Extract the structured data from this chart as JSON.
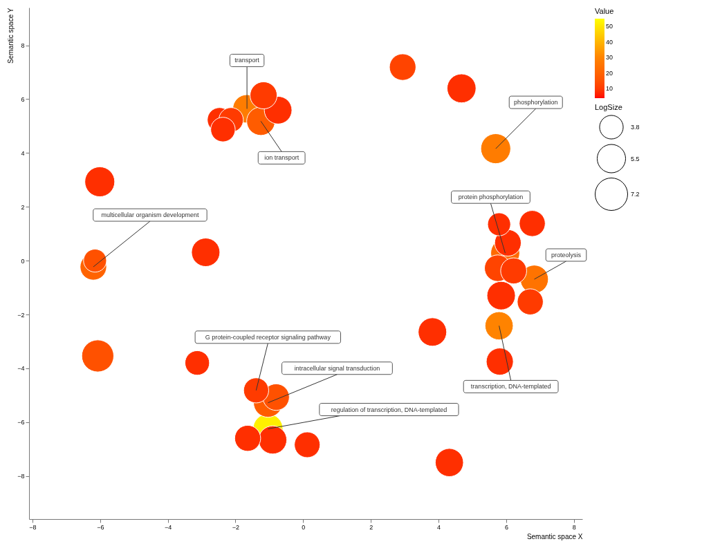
{
  "chart_data": {
    "type": "bubble",
    "xlabel": "Semantic space X",
    "ylabel": "Semantic space Y",
    "clabel": "Value",
    "legend_title": "LogSize",
    "xlim": [
      -8.1,
      8.25
    ],
    "ylim": [
      -9.6,
      9.4
    ],
    "xticks": [
      -8,
      -6,
      -4,
      -2,
      0,
      2,
      4,
      6,
      8
    ],
    "yticks": [
      -8,
      -6,
      -4,
      -2,
      0,
      2,
      4,
      6,
      8
    ],
    "grid": false,
    "marker": "circle",
    "clim": [
      4,
      55
    ],
    "cticks": [
      10,
      20,
      30,
      40,
      50
    ],
    "size_legend": [
      3.8,
      5.5,
      7.2
    ],
    "x": [
      2.94,
      4.68,
      -1.66,
      -1.17,
      -0.74,
      -1.25,
      -2.47,
      -2.13,
      -2.37,
      5.69,
      -6.01,
      -2.88,
      -6.2,
      -6.15,
      5.79,
      6.77,
      6.05,
      5.97,
      5.75,
      6.22,
      6.83,
      5.85,
      6.71,
      5.79,
      3.82,
      5.81,
      4.32,
      -6.07,
      -3.13,
      -1.39,
      -0.8,
      -1.04,
      -1.04,
      -0.9,
      -1.64,
      0.12
    ],
    "values": [
      7.19,
      6.4,
      5.64,
      6.14,
      5.59,
      5.18,
      5.23,
      5.23,
      4.87,
      4.16,
      2.93,
      0.31,
      -0.23,
      0.0,
      1.35,
      1.38,
      0.66,
      0.28,
      -0.28,
      -0.38,
      -0.69,
      -1.3,
      -1.53,
      -2.42,
      -2.65,
      -3.75,
      -7.5,
      -3.54,
      -3.8,
      -4.82,
      -5.07,
      -5.28,
      -6.25,
      -6.66,
      -6.6,
      -6.84
    ],
    "sizes": [
      4.8,
      5.7,
      5.5,
      5.0,
      5.2,
      5.5,
      4.1,
      4.1,
      4.1,
      6.1,
      6.1,
      5.5,
      4.8,
      3.6,
      3.6,
      4.6,
      4.8,
      5.7,
      4.8,
      4.6,
      5.4,
      5.5,
      4.6,
      5.4,
      5.5,
      5.0,
      5.4,
      7.0,
      4.1,
      4.3,
      4.8,
      5.7,
      6.1,
      5.4,
      4.6,
      4.5
    ],
    "cvalues": [
      12,
      8,
      28,
      10,
      8,
      18,
      8,
      10,
      8,
      28,
      8,
      8,
      20,
      15,
      8,
      8,
      8,
      22,
      12,
      10,
      25,
      8,
      10,
      30,
      8,
      8,
      8,
      15,
      8,
      10,
      15,
      18,
      52,
      8,
      8,
      8
    ],
    "annotations": [
      {
        "text": "transport",
        "x": -1.66,
        "y": 5.64
      },
      {
        "text": "ion transport",
        "x": -1.25,
        "y": 5.18
      },
      {
        "text": "phosphorylation",
        "x": 5.69,
        "y": 4.16
      },
      {
        "text": "multicellular organism development",
        "x": -6.2,
        "y": -0.23
      },
      {
        "text": "protein phosphorylation",
        "x": 5.97,
        "y": 0.28
      },
      {
        "text": "proteolysis",
        "x": 6.83,
        "y": -0.69
      },
      {
        "text": "transcription, DNA-templated",
        "x": 5.79,
        "y": -2.42
      },
      {
        "text": "G protein-coupled receptor signaling pathway",
        "x": -1.39,
        "y": -4.82
      },
      {
        "text": "intracellular signal transduction",
        "x": -1.04,
        "y": -5.28
      },
      {
        "text": "regulation of transcription, DNA-templated",
        "x": -1.04,
        "y": -6.25
      }
    ]
  }
}
